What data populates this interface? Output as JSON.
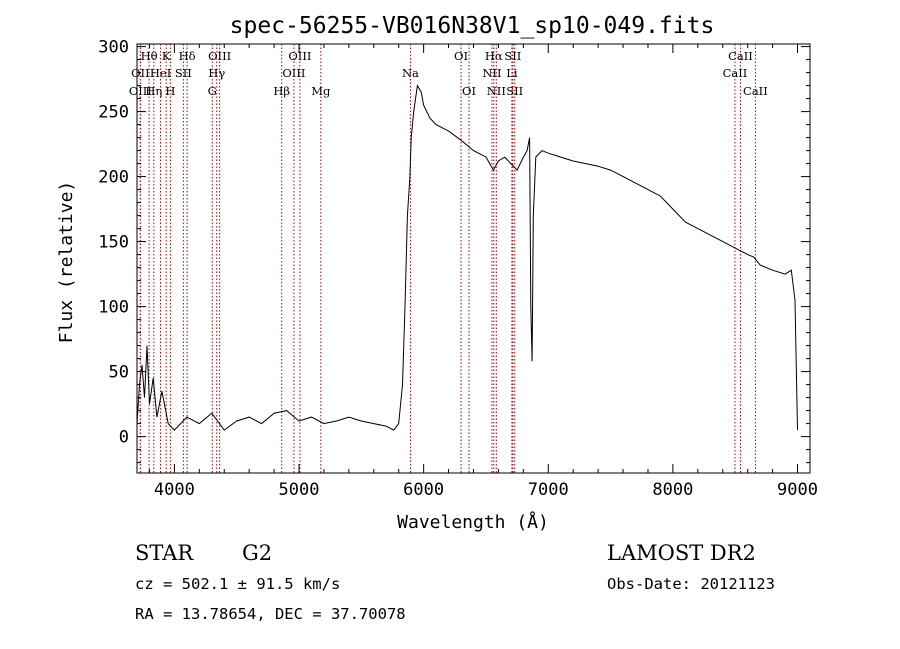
{
  "chart_data": {
    "type": "line",
    "title": "spec-56255-VB016N38V1_sp10-049.fits",
    "xlabel": "Wavelength (Å)",
    "ylabel": "Flux (relative)",
    "xlim": [
      3700,
      9100
    ],
    "ylim": [
      -28,
      302
    ],
    "xticks": [
      4000,
      5000,
      6000,
      7000,
      8000,
      9000
    ],
    "yticks": [
      0,
      50,
      100,
      150,
      200,
      250,
      300
    ],
    "grid": false,
    "series": [
      {
        "x": [
          3700,
          3720,
          3740,
          3760,
          3780,
          3800,
          3830,
          3860,
          3900,
          3950,
          4000,
          4100,
          4200,
          4300,
          4400,
          4500,
          4600,
          4700,
          4800,
          4900,
          5000,
          5100,
          5200,
          5300,
          5400,
          5500,
          5600,
          5700,
          5760,
          5800,
          5830,
          5850,
          5870,
          5890,
          5900,
          5920,
          5950,
          5980,
          6000,
          6050,
          6100,
          6200,
          6300,
          6400,
          6500,
          6560,
          6600,
          6650,
          6700,
          6750,
          6800,
          6830,
          6850,
          6860,
          6870,
          6880,
          6900,
          6950,
          7000,
          7100,
          7200,
          7300,
          7400,
          7500,
          7600,
          7700,
          7800,
          7900,
          8000,
          8100,
          8200,
          8300,
          8400,
          8500,
          8600,
          8650,
          8700,
          8800,
          8900,
          8950,
          8980,
          9000
        ],
        "y": [
          10,
          40,
          55,
          30,
          70,
          25,
          45,
          15,
          35,
          10,
          5,
          15,
          10,
          18,
          5,
          12,
          15,
          10,
          18,
          20,
          12,
          15,
          10,
          12,
          15,
          12,
          10,
          8,
          5,
          10,
          40,
          100,
          170,
          200,
          230,
          250,
          270,
          265,
          255,
          245,
          240,
          235,
          228,
          220,
          215,
          205,
          212,
          215,
          210,
          205,
          215,
          220,
          230,
          100,
          58,
          170,
          215,
          220,
          218,
          215,
          212,
          210,
          208,
          205,
          200,
          195,
          190,
          185,
          175,
          165,
          160,
          155,
          150,
          145,
          140,
          138,
          132,
          128,
          125,
          128,
          105,
          5
        ]
      }
    ],
    "spectral_lines": [
      {
        "label": "Hθ",
        "wavelength": 3797,
        "row": 1
      },
      {
        "label": "OII",
        "wavelength": 3727,
        "row": 2
      },
      {
        "label": "OIII",
        "wavelength": 3727,
        "row": 3
      },
      {
        "label": "Hη",
        "wavelength": 3835,
        "row": 3
      },
      {
        "label": "HeI",
        "wavelength": 3889,
        "row": 2
      },
      {
        "label": "K",
        "wavelength": 3934,
        "row": 1
      },
      {
        "label": "H",
        "wavelength": 3968,
        "row": 3
      },
      {
        "label": "SII",
        "wavelength": 4072,
        "row": 2
      },
      {
        "label": "Hδ",
        "wavelength": 4102,
        "row": 1
      },
      {
        "label": "OIII",
        "wavelength": 4363,
        "row": 1
      },
      {
        "label": "Hγ",
        "wavelength": 4340,
        "row": 2
      },
      {
        "label": "G",
        "wavelength": 4304,
        "row": 3
      },
      {
        "label": "Hβ",
        "wavelength": 4861,
        "row": 3
      },
      {
        "label": "OIII",
        "wavelength": 4959,
        "row": 2
      },
      {
        "label": "OIII",
        "wavelength": 5007,
        "row": 1
      },
      {
        "label": "Mg",
        "wavelength": 5175,
        "row": 3
      },
      {
        "label": "Na",
        "wavelength": 5894,
        "row": 2
      },
      {
        "label": "OI",
        "wavelength": 6300,
        "row": 1
      },
      {
        "label": "OI",
        "wavelength": 6364,
        "row": 3
      },
      {
        "label": "NII",
        "wavelength": 6548,
        "row": 2
      },
      {
        "label": "Hα",
        "wavelength": 6563,
        "row": 1
      },
      {
        "label": "NII",
        "wavelength": 6583,
        "row": 3
      },
      {
        "label": "SII",
        "wavelength": 6716,
        "row": 1
      },
      {
        "label": "Li",
        "wavelength": 6708,
        "row": 2
      },
      {
        "label": "SII",
        "wavelength": 6731,
        "row": 3
      },
      {
        "label": "CaII",
        "wavelength": 8498,
        "row": 2
      },
      {
        "label": "CaII",
        "wavelength": 8542,
        "row": 1
      },
      {
        "label": "CaII",
        "wavelength": 8662,
        "row": 3
      }
    ]
  },
  "info": {
    "object_class": "STAR",
    "subclass": "G2",
    "survey": "LAMOST DR2",
    "redshift_text": "cz = 502.1 ± 91.5 km/s",
    "obs_date_text": "Obs-Date: 20121123",
    "coords_text": "RA =  13.78654, DEC =  37.70078"
  },
  "colors": {
    "spectrum": "#000000",
    "line_markers": "#b00000"
  }
}
